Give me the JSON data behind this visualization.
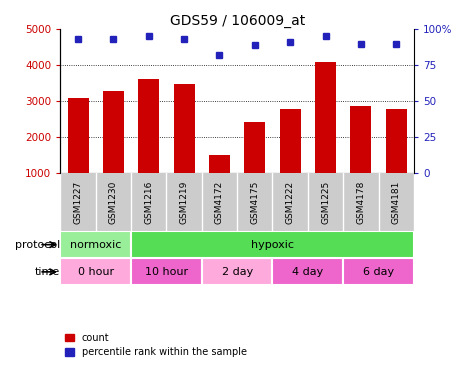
{
  "title": "GDS59 / 106009_at",
  "samples": [
    "GSM1227",
    "GSM1230",
    "GSM1216",
    "GSM1219",
    "GSM4172",
    "GSM4175",
    "GSM1222",
    "GSM1225",
    "GSM4178",
    "GSM4181"
  ],
  "counts": [
    3100,
    3280,
    3620,
    3480,
    1520,
    2440,
    2780,
    4080,
    2880,
    2780
  ],
  "percentiles": [
    93,
    93,
    95,
    93,
    82,
    89,
    91,
    95,
    90,
    90
  ],
  "ylim_left": [
    1000,
    5000
  ],
  "ylim_right": [
    0,
    100
  ],
  "yticks_left": [
    1000,
    2000,
    3000,
    4000,
    5000
  ],
  "yticks_right": [
    0,
    25,
    50,
    75,
    100
  ],
  "bar_color": "#cc0000",
  "dot_color": "#2222bb",
  "protocol_labels": [
    {
      "label": "normoxic",
      "start": 0,
      "end": 2,
      "color": "#99ee99"
    },
    {
      "label": "hypoxic",
      "start": 2,
      "end": 10,
      "color": "#55dd55"
    }
  ],
  "time_labels": [
    {
      "label": "0 hour",
      "start": 0,
      "end": 2,
      "color": "#ffaadd"
    },
    {
      "label": "10 hour",
      "start": 2,
      "end": 4,
      "color": "#ee66cc"
    },
    {
      "label": "2 day",
      "start": 4,
      "end": 6,
      "color": "#ffaadd"
    },
    {
      "label": "4 day",
      "start": 6,
      "end": 8,
      "color": "#ee66cc"
    },
    {
      "label": "6 day",
      "start": 8,
      "end": 10,
      "color": "#ee66cc"
    }
  ],
  "protocol_row_label": "protocol",
  "time_row_label": "time",
  "bg_color": "#ffffff",
  "tick_label_color_left": "#cc0000",
  "tick_label_color_right": "#2222bb",
  "sample_bg_color": "#cccccc",
  "grid_yticks": [
    2000,
    3000,
    4000
  ]
}
